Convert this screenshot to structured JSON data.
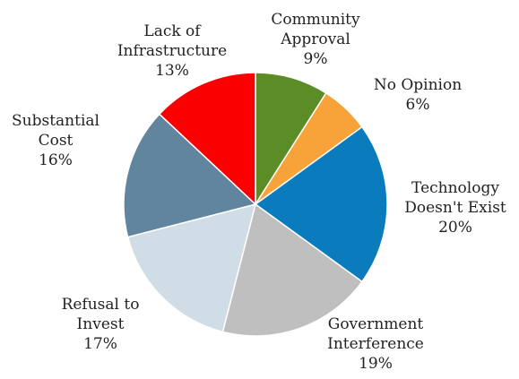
{
  "chart_data": {
    "type": "pie",
    "title": "",
    "start_angle_deg": 0,
    "direction": "clockwise",
    "slices": [
      {
        "label_lines": [
          "Community",
          "Approval"
        ],
        "percent_label": "9%",
        "value": 9,
        "color": "#5b8c26"
      },
      {
        "label_lines": [
          "No Opinion"
        ],
        "percent_label": "6%",
        "value": 6,
        "color": "#f7a33a"
      },
      {
        "label_lines": [
          "Technology",
          "Doesn't Exist"
        ],
        "percent_label": "20%",
        "value": 20,
        "color": "#0a7cbd"
      },
      {
        "label_lines": [
          "Government",
          "Interference"
        ],
        "percent_label": "19%",
        "value": 19,
        "color": "#bfbfbf"
      },
      {
        "label_lines": [
          "Refusal to",
          "Invest"
        ],
        "percent_label": "17%",
        "value": 17,
        "color": "#d1dde6"
      },
      {
        "label_lines": [
          "Substantial",
          "Cost"
        ],
        "percent_label": "16%",
        "value": 16,
        "color": "#61859f"
      },
      {
        "label_lines": [
          "Lack of",
          "Infrastructure"
        ],
        "percent_label": "13%",
        "value": 13,
        "color": "#fa0000"
      }
    ]
  }
}
